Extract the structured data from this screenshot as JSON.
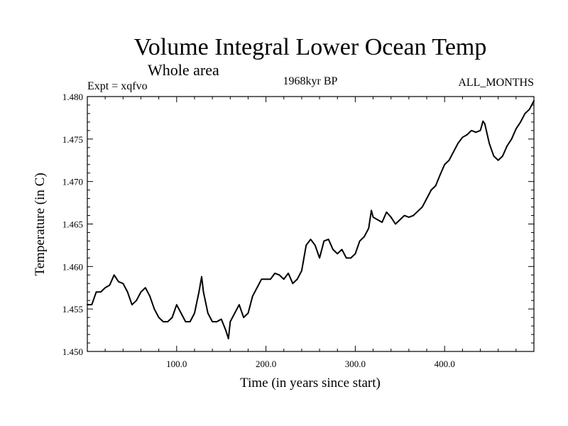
{
  "chart_data": {
    "type": "line",
    "title": "Volume Integral Lower Ocean Temp",
    "subtitle": "Whole area",
    "experiment": "Expt = xqfvo",
    "period": "1968kyr BP",
    "months": "ALL_MONTHS",
    "xlabel": "Time (in years since start)",
    "ylabel": "Temperature (in C)",
    "xlim": [
      0,
      500
    ],
    "ylim": [
      1.45,
      1.48
    ],
    "x_ticks": [
      100,
      200,
      300,
      400
    ],
    "x_tick_labels": [
      "100.0",
      "200.0",
      "300.0",
      "400.0"
    ],
    "y_ticks": [
      1.45,
      1.455,
      1.46,
      1.465,
      1.47,
      1.475,
      1.48
    ],
    "y_tick_labels": [
      "1.450",
      "1.455",
      "1.460",
      "1.465",
      "1.470",
      "1.475",
      "1.480"
    ],
    "series": [
      {
        "name": "Volume Integral Lower Ocean Temp",
        "x": [
          0,
          5,
          10,
          15,
          20,
          25,
          30,
          35,
          40,
          45,
          50,
          55,
          60,
          65,
          70,
          75,
          80,
          85,
          90,
          95,
          100,
          105,
          110,
          115,
          120,
          125,
          128,
          130,
          135,
          140,
          145,
          150,
          155,
          158,
          160,
          165,
          170,
          175,
          180,
          185,
          190,
          195,
          200,
          205,
          210,
          215,
          220,
          225,
          230,
          235,
          240,
          245,
          250,
          255,
          260,
          265,
          270,
          275,
          280,
          285,
          290,
          295,
          300,
          305,
          310,
          315,
          318,
          320,
          325,
          330,
          335,
          340,
          345,
          350,
          355,
          360,
          365,
          370,
          375,
          380,
          385,
          390,
          395,
          400,
          405,
          410,
          415,
          420,
          425,
          430,
          435,
          440,
          443,
          445,
          450,
          455,
          460,
          465,
          470,
          475,
          480,
          485,
          490,
          495,
          500
        ],
        "values": [
          1.4555,
          1.4555,
          1.457,
          1.457,
          1.4575,
          1.4578,
          1.459,
          1.4582,
          1.458,
          1.457,
          1.4555,
          1.456,
          1.457,
          1.4575,
          1.4565,
          1.455,
          1.454,
          1.4535,
          1.4535,
          1.454,
          1.4555,
          1.4545,
          1.4535,
          1.4535,
          1.4545,
          1.457,
          1.4588,
          1.457,
          1.4545,
          1.4535,
          1.4535,
          1.4538,
          1.4525,
          1.4515,
          1.4535,
          1.4545,
          1.4555,
          1.454,
          1.4545,
          1.4565,
          1.4575,
          1.4585,
          1.4585,
          1.4585,
          1.4592,
          1.459,
          1.4585,
          1.4592,
          1.458,
          1.4585,
          1.4595,
          1.4625,
          1.4632,
          1.4625,
          1.461,
          1.463,
          1.4632,
          1.462,
          1.4615,
          1.462,
          1.461,
          1.461,
          1.4615,
          1.463,
          1.4635,
          1.4645,
          1.4666,
          1.4658,
          1.4655,
          1.4652,
          1.4664,
          1.4658,
          1.465,
          1.4655,
          1.466,
          1.4658,
          1.466,
          1.4665,
          1.467,
          1.468,
          1.469,
          1.4695,
          1.4708,
          1.472,
          1.4725,
          1.4735,
          1.4745,
          1.4752,
          1.4755,
          1.476,
          1.4758,
          1.476,
          1.4771,
          1.4768,
          1.4745,
          1.473,
          1.4725,
          1.473,
          1.4742,
          1.475,
          1.4762,
          1.477,
          1.478,
          1.4785,
          1.4795
        ]
      }
    ]
  }
}
